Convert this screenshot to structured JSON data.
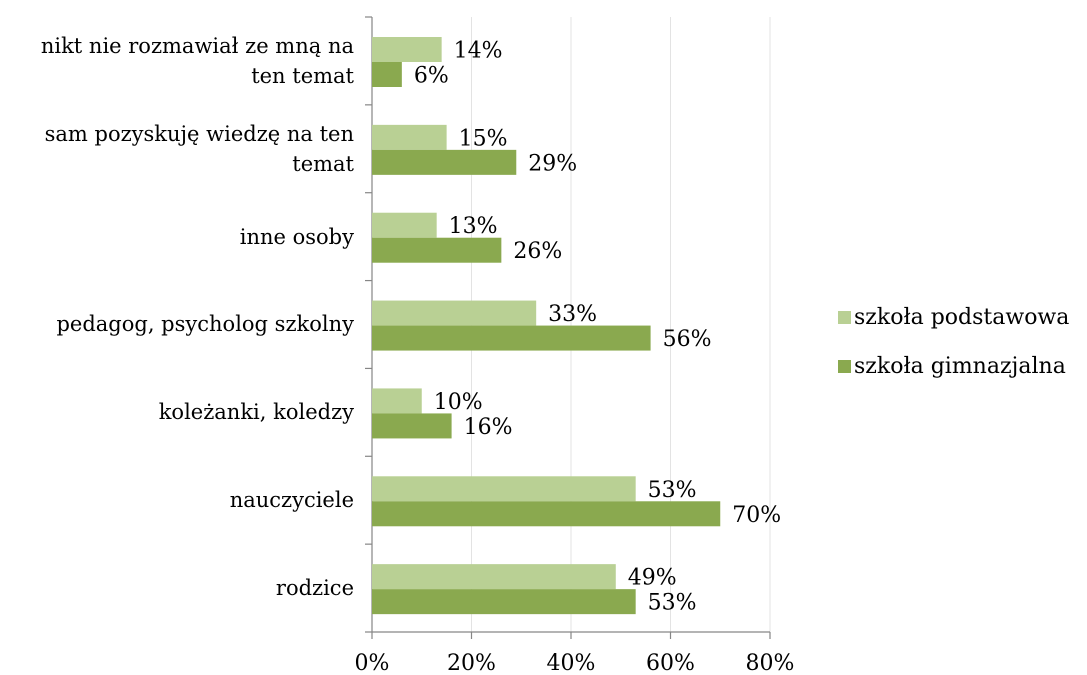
{
  "chart_data": {
    "type": "hbar",
    "categories": [
      "nikt nie rozmawiał ze mną na ten temat",
      "sam pozyskuję wiedzę na ten temat",
      "inne osoby",
      "pedagog, psycholog szkolny",
      "koleżanki, koledzy",
      "nauczyciele",
      "rodzice"
    ],
    "series": [
      {
        "name": "szkoła podstawowa",
        "color": "#b9d094",
        "values": [
          14,
          15,
          13,
          33,
          10,
          53,
          49
        ],
        "value_labels": [
          "14%",
          "15%",
          "13%",
          "33%",
          "10%",
          "53%",
          "49%"
        ]
      },
      {
        "name": "szkoła gimnazjalna",
        "color": "#8aa94f",
        "values": [
          6,
          29,
          26,
          56,
          16,
          70,
          53
        ],
        "value_labels": [
          "6%",
          "29%",
          "26%",
          "56%",
          "16%",
          "70%",
          "53%"
        ]
      }
    ],
    "xlim": [
      0,
      80
    ],
    "xticks": [
      {
        "value": 0,
        "label": "0%"
      },
      {
        "value": 20,
        "label": "20%"
      },
      {
        "value": 40,
        "label": "40%"
      },
      {
        "value": 60,
        "label": "60%"
      },
      {
        "value": 80,
        "label": "80%"
      }
    ],
    "grid": true,
    "legend": "right"
  }
}
